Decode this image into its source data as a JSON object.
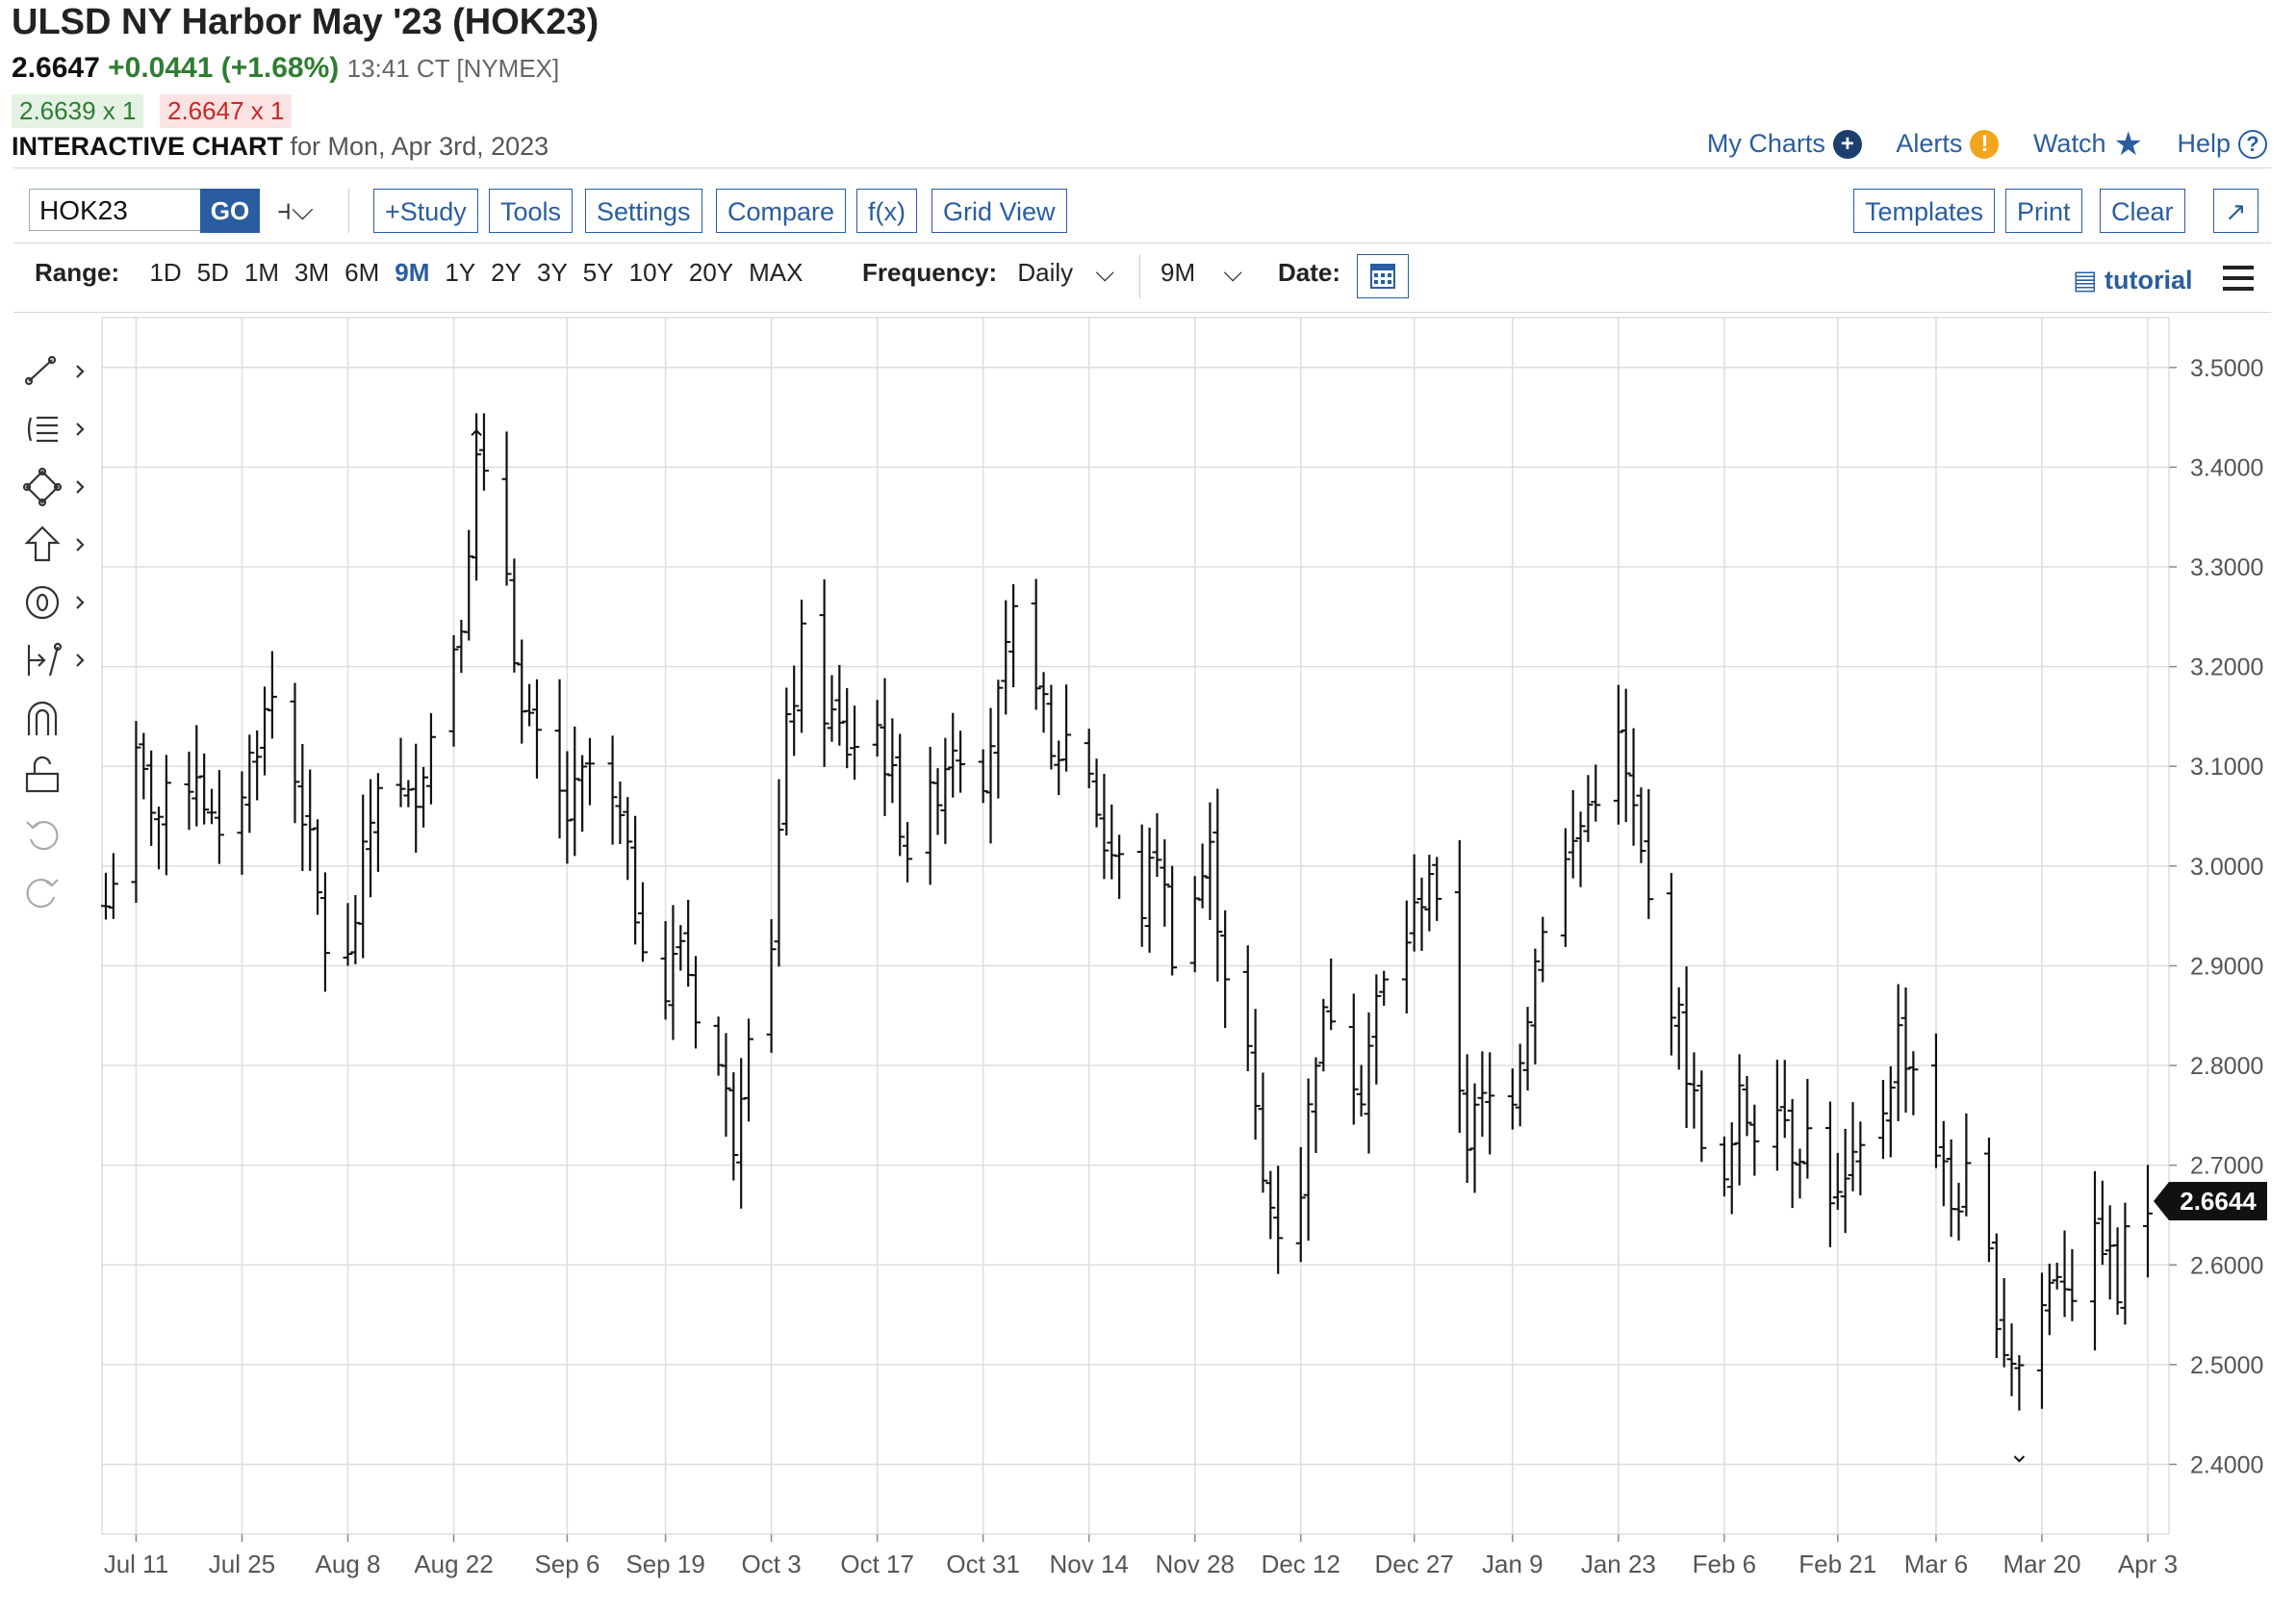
{
  "header": {
    "title": "ULSD NY Harbor May '23 (HOK23)",
    "last": "2.6647",
    "change": "+0.0441 (+1.68%)",
    "time": "13:41 CT [NYMEX]",
    "bid": "2.6639 x 1",
    "ask": "2.6647 x 1",
    "chart_label": "INTERACTIVE CHART",
    "chart_for": "for Mon, Apr 3rd, 2023"
  },
  "links": {
    "my_charts": "My Charts",
    "alerts": "Alerts",
    "watch": "Watch",
    "help": "Help"
  },
  "toolbar": {
    "symbol": "HOK23",
    "go": "GO",
    "study": "+Study",
    "tools": "Tools",
    "settings": "Settings",
    "compare": "Compare",
    "fx": "f(x)",
    "grid_view": "Grid View",
    "templates": "Templates",
    "print": "Print",
    "clear": "Clear",
    "expand": "↗"
  },
  "rangebar": {
    "range_label": "Range:",
    "ranges": [
      "1D",
      "5D",
      "1M",
      "3M",
      "6M",
      "9M",
      "1Y",
      "2Y",
      "3Y",
      "5Y",
      "10Y",
      "20Y",
      "MAX"
    ],
    "active_range": "9M",
    "frequency_label": "Frequency:",
    "frequency": "Daily",
    "aggregation": "9M",
    "date_label": "Date:",
    "tutorial": "tutorial"
  },
  "drawing_tools": [
    "line-tool-icon",
    "fib-tool-icon",
    "shape-tool-icon",
    "arrow-tool-icon",
    "text-tool-icon",
    "measure-tool-icon",
    "magnet-icon",
    "lock-icon",
    "undo-icon",
    "redo-icon"
  ],
  "colors": {
    "accent": "#2a5d9f",
    "up": "#2f7d32",
    "down": "#c62828",
    "bars": "#111111",
    "grid": "#dddddd"
  },
  "chart_data": {
    "type": "ohlc",
    "title": "",
    "frequency": "daily",
    "ylim": [
      2.33,
      3.55
    ],
    "y_ticks": [
      2.4,
      2.5,
      2.6,
      2.7,
      2.8,
      2.9,
      3.0,
      3.1,
      3.2,
      3.3,
      3.4,
      3.5
    ],
    "y_tick_labels": [
      "2.4000",
      "2.5000",
      "2.6000",
      "2.7000",
      "2.8000",
      "2.9000",
      "3.0000",
      "3.1000",
      "3.2000",
      "3.3000",
      "3.4000",
      "3.5000"
    ],
    "x_tick_labels": [
      "Jul 11",
      "Jul 25",
      "Aug 8",
      "Aug 22",
      "Sep 6",
      "Sep 19",
      "Oct 3",
      "Oct 17",
      "Oct 31",
      "Nov 14",
      "Nov 28",
      "Dec 12",
      "Dec 27",
      "Jan 9",
      "Jan 23",
      "Feb 6",
      "Feb 21",
      "Mar 6",
      "Mar 20",
      "Apr 3"
    ],
    "x_tick_dates": [
      "2022-07-11",
      "2022-07-25",
      "2022-08-08",
      "2022-08-22",
      "2022-09-06",
      "2022-09-19",
      "2022-10-03",
      "2022-10-17",
      "2022-10-31",
      "2022-11-14",
      "2022-11-28",
      "2022-12-12",
      "2022-12-27",
      "2023-01-09",
      "2023-01-23",
      "2023-02-06",
      "2023-02-21",
      "2023-03-06",
      "2023-03-20",
      "2023-04-03"
    ],
    "x_range": [
      "2022-07-07",
      "2023-04-03"
    ],
    "high_marker": 3.43,
    "low_marker": 2.41,
    "last_price": "2.6644",
    "grid": true,
    "anchors": [
      [
        "2022-07-07",
        2.96
      ],
      [
        "2022-07-11",
        3.1
      ],
      [
        "2022-07-14",
        3.05
      ],
      [
        "2022-07-19",
        3.1
      ],
      [
        "2022-07-22",
        3.01
      ],
      [
        "2022-07-27",
        3.13
      ],
      [
        "2022-07-29",
        3.17
      ],
      [
        "2022-08-02",
        3.06
      ],
      [
        "2022-08-05",
        2.92
      ],
      [
        "2022-08-08",
        2.9
      ],
      [
        "2022-08-10",
        3.0
      ],
      [
        "2022-08-12",
        3.09
      ],
      [
        "2022-08-16",
        3.06
      ],
      [
        "2022-08-19",
        3.13
      ],
      [
        "2022-08-23",
        3.26
      ],
      [
        "2022-08-25",
        3.4
      ],
      [
        "2022-08-29",
        3.3
      ],
      [
        "2022-08-31",
        3.15
      ],
      [
        "2022-09-06",
        3.05
      ],
      [
        "2022-09-09",
        3.1
      ],
      [
        "2022-09-13",
        3.04
      ],
      [
        "2022-09-15",
        2.96
      ],
      [
        "2022-09-19",
        2.87
      ],
      [
        "2022-09-21",
        2.93
      ],
      [
        "2022-09-23",
        2.86
      ],
      [
        "2022-09-26",
        2.8
      ],
      [
        "2022-09-28",
        2.73
      ],
      [
        "2022-09-30",
        2.85
      ],
      [
        "2022-10-03",
        2.93
      ],
      [
        "2022-10-05",
        3.13
      ],
      [
        "2022-10-07",
        3.22
      ],
      [
        "2022-10-10",
        3.16
      ],
      [
        "2022-10-13",
        3.12
      ],
      [
        "2022-10-17",
        3.14
      ],
      [
        "2022-10-19",
        3.08
      ],
      [
        "2022-10-21",
        3.02
      ],
      [
        "2022-10-24",
        3.06
      ],
      [
        "2022-10-27",
        3.13
      ],
      [
        "2022-10-31",
        3.1
      ],
      [
        "2022-11-02",
        3.16
      ],
      [
        "2022-11-04",
        3.24
      ],
      [
        "2022-11-07",
        3.2
      ],
      [
        "2022-11-09",
        3.1
      ],
      [
        "2022-11-11",
        3.13
      ],
      [
        "2022-11-14",
        3.1
      ],
      [
        "2022-11-16",
        3.02
      ],
      [
        "2022-11-18",
        3.0
      ],
      [
        "2022-11-21",
        2.96
      ],
      [
        "2022-11-23",
        3.02
      ],
      [
        "2022-11-25",
        2.92
      ],
      [
        "2022-11-28",
        2.97
      ],
      [
        "2022-11-30",
        3.01
      ],
      [
        "2022-12-02",
        2.9
      ],
      [
        "2022-12-05",
        2.81
      ],
      [
        "2022-12-07",
        2.68
      ],
      [
        "2022-12-09",
        2.64
      ],
      [
        "2022-12-12",
        2.68
      ],
      [
        "2022-12-14",
        2.82
      ],
      [
        "2022-12-16",
        2.86
      ],
      [
        "2022-12-20",
        2.78
      ],
      [
        "2022-12-22",
        2.86
      ],
      [
        "2022-12-27",
        2.95
      ],
      [
        "2022-12-29",
        3.0
      ],
      [
        "2023-01-03",
        2.73
      ],
      [
        "2023-01-05",
        2.76
      ],
      [
        "2023-01-09",
        2.78
      ],
      [
        "2023-01-11",
        2.86
      ],
      [
        "2023-01-13",
        2.95
      ],
      [
        "2023-01-17",
        3.02
      ],
      [
        "2023-01-20",
        3.08
      ],
      [
        "2023-01-23",
        3.12
      ],
      [
        "2023-01-25",
        3.05
      ],
      [
        "2023-01-27",
        2.96
      ],
      [
        "2023-01-31",
        2.84
      ],
      [
        "2023-02-02",
        2.76
      ],
      [
        "2023-02-06",
        2.67
      ],
      [
        "2023-02-08",
        2.76
      ],
      [
        "2023-02-10",
        2.74
      ],
      [
        "2023-02-13",
        2.78
      ],
      [
        "2023-02-15",
        2.72
      ],
      [
        "2023-02-17",
        2.73
      ],
      [
        "2023-02-21",
        2.66
      ],
      [
        "2023-02-23",
        2.69
      ],
      [
        "2023-02-27",
        2.76
      ],
      [
        "2023-03-01",
        2.83
      ],
      [
        "2023-03-03",
        2.8
      ],
      [
        "2023-03-06",
        2.72
      ],
      [
        "2023-03-08",
        2.66
      ],
      [
        "2023-03-10",
        2.68
      ],
      [
        "2023-03-13",
        2.6
      ],
      [
        "2023-03-15",
        2.52
      ],
      [
        "2023-03-17",
        2.5
      ],
      [
        "2023-03-20",
        2.56
      ],
      [
        "2023-03-22",
        2.6
      ],
      [
        "2023-03-24",
        2.58
      ],
      [
        "2023-03-28",
        2.63
      ],
      [
        "2023-03-30",
        2.57
      ],
      [
        "2023-03-31",
        2.62
      ],
      [
        "2023-04-03",
        2.66
      ]
    ]
  }
}
